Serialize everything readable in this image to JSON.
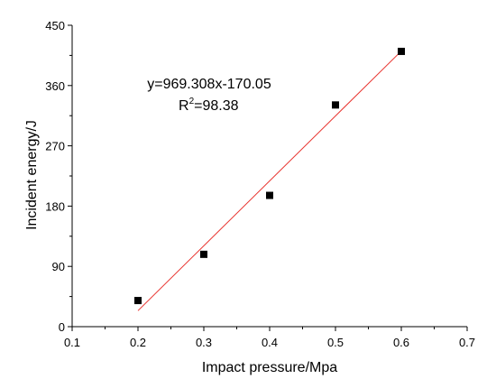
{
  "chart_data": {
    "type": "scatter",
    "xlabel": "Impact pressure/Mpa",
    "ylabel": "Incident energy/J",
    "xlim": [
      0.1,
      0.7
    ],
    "ylim": [
      0,
      450
    ],
    "x_ticks": [
      0.1,
      0.2,
      0.3,
      0.4,
      0.5,
      0.6,
      0.7
    ],
    "y_ticks": [
      0,
      90,
      180,
      270,
      360,
      450
    ],
    "x_tick_labels": [
      "0.1",
      "0.2",
      "0.3",
      "0.4",
      "0.5",
      "0.6",
      "0.7"
    ],
    "y_tick_labels": [
      "0",
      "90",
      "180",
      "270",
      "360",
      "450"
    ],
    "grid": false,
    "series": [
      {
        "x": [
          0.2,
          0.3,
          0.4,
          0.5,
          0.6
        ],
        "y": [
          39,
          108,
          196,
          331,
          411
        ],
        "marker": "square",
        "color": "#000000"
      }
    ],
    "fit_line": {
      "x_range": [
        0.2,
        0.6
      ],
      "slope": 969.308,
      "intercept": -170.05,
      "color": "#e8322d"
    },
    "annotations": {
      "equation": "y=969.308x-170.05",
      "r2_label": "R",
      "r2_sup": "2",
      "r2_value": "=98.38"
    }
  }
}
